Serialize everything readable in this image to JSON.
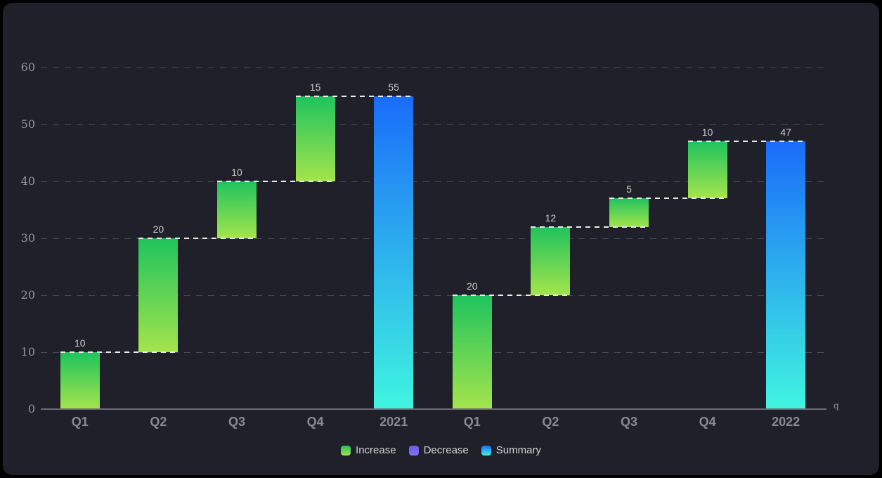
{
  "chart_data": {
    "type": "bar",
    "subtype": "waterfall",
    "title": "",
    "xlabel": "q",
    "ylabel": "",
    "ylim": [
      0,
      60
    ],
    "yticks": [
      0,
      10,
      20,
      30,
      40,
      50,
      60
    ],
    "grid": "dashed-horizontal",
    "categories": [
      "Q1",
      "Q2",
      "Q3",
      "Q4",
      "2021",
      "Q1",
      "Q2",
      "Q3",
      "Q4",
      "2022"
    ],
    "items": [
      {
        "category": "Q1",
        "value": 10,
        "kind": "increase",
        "start": 0,
        "end": 10
      },
      {
        "category": "Q2",
        "value": 20,
        "kind": "increase",
        "start": 10,
        "end": 30
      },
      {
        "category": "Q3",
        "value": 10,
        "kind": "increase",
        "start": 30,
        "end": 40
      },
      {
        "category": "Q4",
        "value": 15,
        "kind": "increase",
        "start": 40,
        "end": 55
      },
      {
        "category": "2021",
        "value": 55,
        "kind": "summary",
        "start": 0,
        "end": 55
      },
      {
        "category": "Q1",
        "value": 20,
        "kind": "increase",
        "start": 0,
        "end": 20
      },
      {
        "category": "Q2",
        "value": 12,
        "kind": "increase",
        "start": 20,
        "end": 32
      },
      {
        "category": "Q3",
        "value": 5,
        "kind": "increase",
        "start": 32,
        "end": 37
      },
      {
        "category": "Q4",
        "value": 10,
        "kind": "increase",
        "start": 37,
        "end": 47
      },
      {
        "category": "2022",
        "value": 47,
        "kind": "summary",
        "start": 0,
        "end": 47
      }
    ],
    "legend": [
      {
        "label": "Increase",
        "kind": "increase"
      },
      {
        "label": "Decrease",
        "kind": "decrease"
      },
      {
        "label": "Summary",
        "kind": "summary"
      }
    ],
    "legend_position": "bottom-center"
  },
  "colors": {
    "outer_background": "#000000",
    "panel_background": "#20202a",
    "increase_gradient": [
      "#1fc35e",
      "#a4e44c"
    ],
    "decrease_gradient": [
      "#6a5ae8",
      "#8572f0"
    ],
    "summary_gradient": [
      "#1a6cfa",
      "#40f5e0"
    ],
    "gridline": "#4a4a54",
    "axis_line": "#6b6b75",
    "tick_label": "#94949d",
    "category_label": "#8a8a94",
    "value_label": "#cccccf",
    "connector": "#e9e9ef",
    "legend_text": "#d2d2d8"
  }
}
